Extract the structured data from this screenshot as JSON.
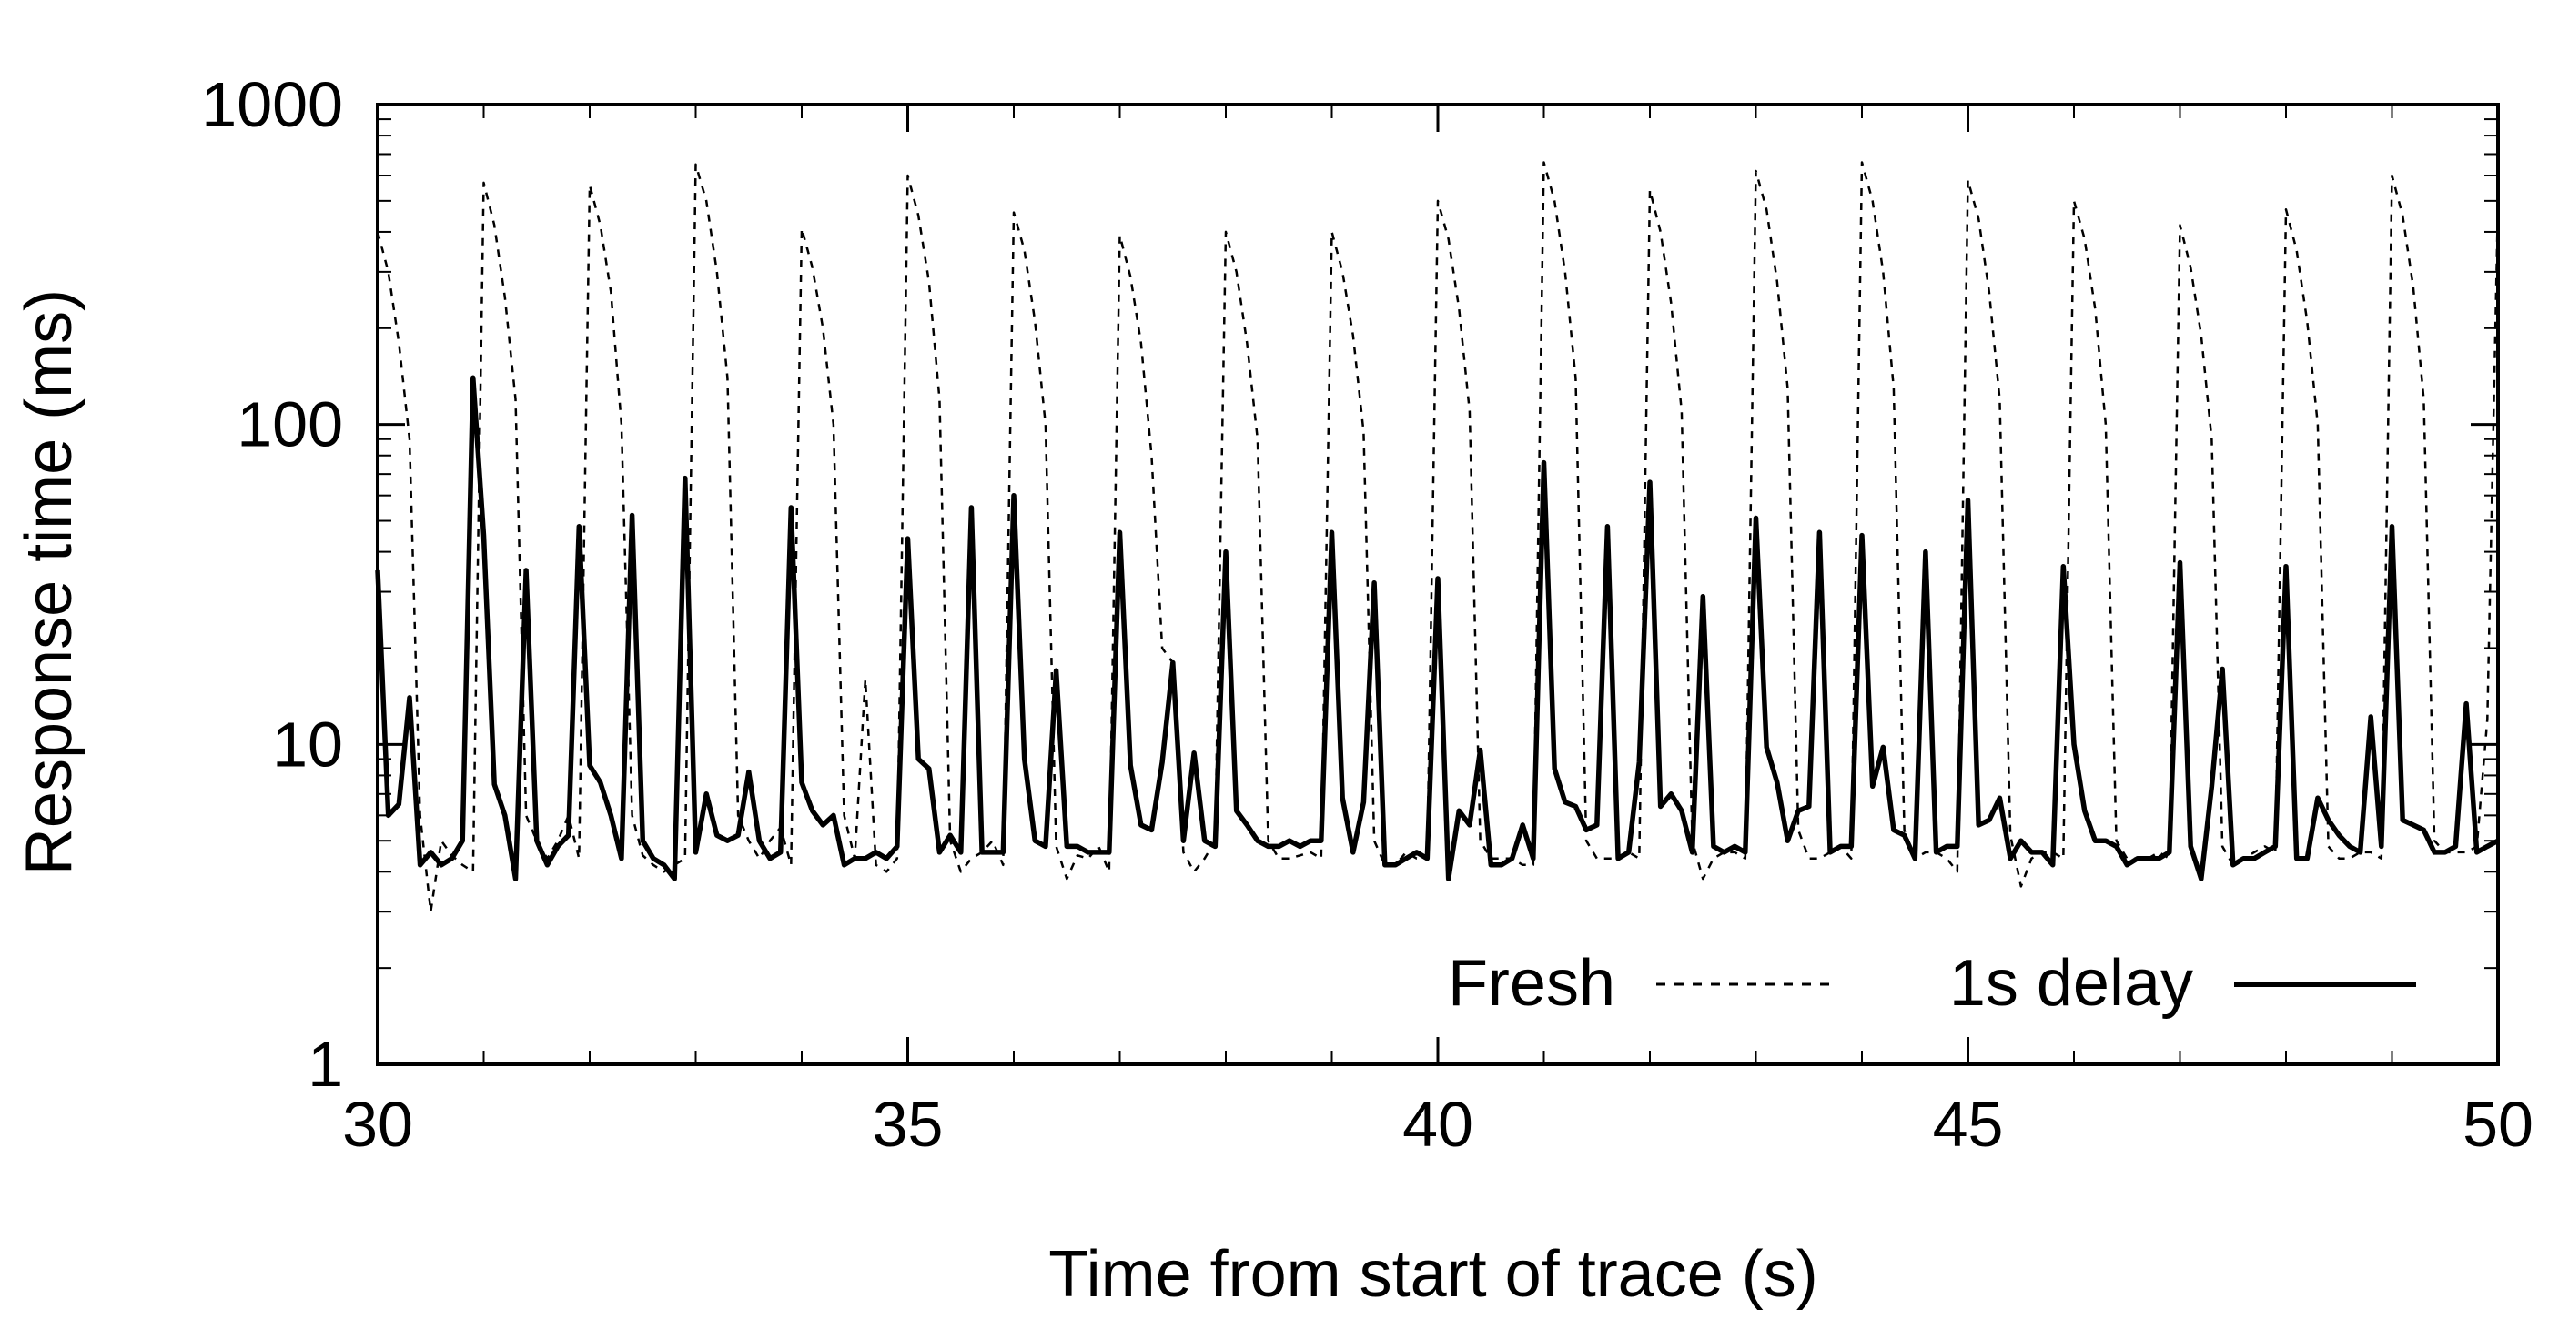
{
  "chart_data": {
    "type": "line",
    "xlabel": "Time from start of trace (s)",
    "ylabel": "Response time (ms)",
    "xlim": [
      30,
      50
    ],
    "ylim": [
      1,
      1000
    ],
    "yscale": "log",
    "grid": false,
    "legend_position": "bottom-right",
    "x_ticks": [
      "30",
      "35",
      "40",
      "45",
      "50"
    ],
    "y_ticks": [
      "1",
      "10",
      "100",
      "1000"
    ],
    "series": [
      {
        "name": "Fresh",
        "style": "dashed",
        "color": "#000000",
        "x": [
          30.0,
          30.1,
          30.2,
          30.3,
          30.4,
          30.5,
          30.6,
          30.7,
          30.8,
          30.9,
          31.0,
          31.1,
          31.2,
          31.3,
          31.4,
          31.5,
          31.6,
          31.7,
          31.8,
          31.9,
          32.0,
          32.1,
          32.2,
          32.3,
          32.4,
          32.5,
          32.6,
          32.7,
          32.8,
          32.9,
          33.0,
          33.1,
          33.2,
          33.3,
          33.4,
          33.5,
          33.6,
          33.7,
          33.8,
          33.9,
          34.0,
          34.1,
          34.2,
          34.3,
          34.4,
          34.5,
          34.6,
          34.7,
          34.8,
          34.9,
          35.0,
          35.1,
          35.2,
          35.3,
          35.4,
          35.5,
          35.6,
          35.7,
          35.8,
          35.9,
          36.0,
          36.1,
          36.2,
          36.3,
          36.4,
          36.5,
          36.6,
          36.7,
          36.8,
          36.9,
          37.0,
          37.1,
          37.2,
          37.3,
          37.4,
          37.5,
          37.6,
          37.7,
          37.8,
          37.9,
          38.0,
          38.1,
          38.2,
          38.3,
          38.4,
          38.5,
          38.6,
          38.7,
          38.8,
          38.9,
          39.0,
          39.1,
          39.2,
          39.3,
          39.4,
          39.5,
          39.6,
          39.7,
          39.8,
          39.9,
          40.0,
          40.1,
          40.2,
          40.3,
          40.4,
          40.5,
          40.6,
          40.7,
          40.8,
          40.9,
          41.0,
          41.1,
          41.2,
          41.3,
          41.4,
          41.5,
          41.6,
          41.7,
          41.8,
          41.9,
          42.0,
          42.1,
          42.2,
          42.3,
          42.4,
          42.5,
          42.6,
          42.7,
          42.8,
          42.9,
          43.0,
          43.1,
          43.2,
          43.3,
          43.4,
          43.5,
          43.6,
          43.7,
          43.8,
          43.9,
          44.0,
          44.1,
          44.2,
          44.3,
          44.4,
          44.5,
          44.6,
          44.7,
          44.8,
          44.9,
          45.0,
          45.1,
          45.2,
          45.3,
          45.4,
          45.5,
          45.6,
          45.7,
          45.8,
          45.9,
          46.0,
          46.1,
          46.2,
          46.3,
          46.4,
          46.5,
          46.6,
          46.7,
          46.8,
          46.9,
          47.0,
          47.1,
          47.2,
          47.3,
          47.4,
          47.5,
          47.6,
          47.7,
          47.8,
          47.9,
          48.0,
          48.1,
          48.2,
          48.3,
          48.4,
          48.5,
          48.6,
          48.7,
          48.8,
          48.9,
          49.0,
          49.1,
          49.2,
          49.3,
          49.4,
          49.5,
          49.6,
          49.7,
          49.8,
          49.9,
          50.0
        ],
        "y": [
          400,
          300,
          180,
          90,
          6,
          3,
          5,
          4.5,
          4.2,
          4,
          570,
          420,
          250,
          120,
          6,
          5,
          4.4,
          5,
          6,
          4.4,
          560,
          420,
          260,
          100,
          6,
          4.5,
          4.2,
          4,
          4.2,
          4.4,
          650,
          500,
          300,
          140,
          6,
          5,
          4.4,
          5,
          5.5,
          4.2,
          410,
          310,
          200,
          100,
          6,
          4.4,
          16,
          4.2,
          4,
          4.4,
          600,
          450,
          280,
          120,
          5,
          4,
          4.4,
          4.6,
          5,
          4.2,
          460,
          350,
          210,
          100,
          4.8,
          3.8,
          4.5,
          4.4,
          4.8,
          4,
          390,
          290,
          180,
          80,
          20,
          18,
          4.6,
          4,
          4.4,
          5,
          400,
          300,
          180,
          90,
          5,
          4.4,
          4.4,
          4.5,
          4.6,
          4.4,
          400,
          300,
          190,
          95,
          5,
          4.2,
          4.2,
          4.6,
          4.4,
          4.4,
          500,
          380,
          230,
          110,
          5,
          4.4,
          4.4,
          4.4,
          4.2,
          4.2,
          660,
          500,
          300,
          140,
          5,
          4.4,
          4.4,
          4.4,
          4.6,
          4.4,
          540,
          400,
          240,
          110,
          5,
          3.8,
          4.4,
          4.6,
          4.6,
          4.4,
          620,
          470,
          280,
          130,
          5.4,
          4.4,
          4.4,
          4.6,
          4.8,
          4.4,
          660,
          500,
          300,
          130,
          5.4,
          4.4,
          4.6,
          4.6,
          4.4,
          4,
          580,
          440,
          260,
          120,
          5.2,
          3.6,
          4.4,
          4.6,
          4.6,
          4.4,
          500,
          380,
          230,
          100,
          5,
          4.4,
          4.4,
          4.4,
          4.6,
          4.4,
          420,
          310,
          190,
          90,
          4.8,
          4.2,
          4.4,
          4.6,
          4.8,
          4.6,
          470,
          350,
          210,
          100,
          4.8,
          4.4,
          4.4,
          4.6,
          4.6,
          4.4,
          600,
          450,
          270,
          120,
          5,
          4.6,
          4.6,
          4.6,
          4.8,
          12,
          500
        ]
      },
      {
        "name": "1s delay",
        "style": "solid",
        "color": "#000000",
        "x": [
          30.0,
          30.1,
          30.2,
          30.3,
          30.4,
          30.5,
          30.6,
          30.7,
          30.8,
          30.9,
          31.0,
          31.1,
          31.2,
          31.3,
          31.4,
          31.5,
          31.6,
          31.7,
          31.8,
          31.9,
          32.0,
          32.1,
          32.2,
          32.3,
          32.4,
          32.5,
          32.6,
          32.7,
          32.8,
          32.9,
          33.0,
          33.1,
          33.2,
          33.3,
          33.4,
          33.5,
          33.6,
          33.7,
          33.8,
          33.9,
          34.0,
          34.1,
          34.2,
          34.3,
          34.4,
          34.5,
          34.6,
          34.7,
          34.8,
          34.9,
          35.0,
          35.1,
          35.2,
          35.3,
          35.4,
          35.5,
          35.6,
          35.7,
          35.8,
          35.9,
          36.0,
          36.1,
          36.2,
          36.3,
          36.4,
          36.5,
          36.6,
          36.7,
          36.8,
          36.9,
          37.0,
          37.1,
          37.2,
          37.3,
          37.4,
          37.5,
          37.6,
          37.7,
          37.8,
          37.9,
          38.0,
          38.1,
          38.2,
          38.3,
          38.4,
          38.5,
          38.6,
          38.7,
          38.8,
          38.9,
          39.0,
          39.1,
          39.2,
          39.3,
          39.4,
          39.5,
          39.6,
          39.7,
          39.8,
          39.9,
          40.0,
          40.1,
          40.2,
          40.3,
          40.4,
          40.5,
          40.6,
          40.7,
          40.8,
          40.9,
          41.0,
          41.1,
          41.2,
          41.3,
          41.4,
          41.5,
          41.6,
          41.7,
          41.8,
          41.9,
          42.0,
          42.1,
          42.2,
          42.3,
          42.4,
          42.5,
          42.6,
          42.7,
          42.8,
          42.9,
          43.0,
          43.1,
          43.2,
          43.3,
          43.4,
          43.5,
          43.6,
          43.7,
          43.8,
          43.9,
          44.0,
          44.1,
          44.2,
          44.3,
          44.4,
          44.5,
          44.6,
          44.7,
          44.8,
          44.9,
          45.0,
          45.1,
          45.2,
          45.3,
          45.4,
          45.5,
          45.6,
          45.7,
          45.8,
          45.9,
          46.0,
          46.1,
          46.2,
          46.3,
          46.4,
          46.5,
          46.6,
          46.7,
          46.8,
          46.9,
          47.0,
          47.1,
          47.2,
          47.3,
          47.4,
          47.5,
          47.6,
          47.7,
          47.8,
          47.9,
          48.0,
          48.1,
          48.2,
          48.3,
          48.4,
          48.5,
          48.6,
          48.7,
          48.8,
          48.9,
          49.0,
          49.1,
          49.2,
          49.3,
          49.4,
          49.5,
          49.6,
          49.7,
          49.8,
          49.9,
          50.0
        ],
        "y": [
          35,
          6,
          6.5,
          14,
          4.2,
          4.6,
          4.2,
          4.4,
          5,
          140,
          45,
          7.5,
          6,
          3.8,
          35,
          5,
          4.2,
          4.8,
          5.2,
          48,
          8.6,
          7.6,
          6,
          4.4,
          52,
          5,
          4.4,
          4.2,
          3.8,
          68,
          4.6,
          7,
          5.2,
          5,
          5.2,
          8.2,
          5,
          4.4,
          4.6,
          55,
          7.6,
          6.2,
          5.6,
          6,
          4.2,
          4.4,
          4.4,
          4.6,
          4.4,
          4.8,
          44,
          9,
          8.4,
          4.6,
          5.2,
          4.6,
          55,
          4.6,
          4.6,
          4.6,
          60,
          9,
          5,
          4.8,
          17,
          4.8,
          4.8,
          4.6,
          4.6,
          4.6,
          46,
          8.6,
          5.6,
          5.4,
          8.8,
          18,
          5,
          9.4,
          5,
          4.8,
          40,
          6.2,
          5.6,
          5,
          4.8,
          4.8,
          5,
          4.8,
          5,
          5,
          46,
          6.8,
          4.6,
          6.6,
          32,
          4.2,
          4.2,
          4.4,
          4.6,
          4.4,
          33,
          3.8,
          6.2,
          5.6,
          9.6,
          4.2,
          4.2,
          4.4,
          5.6,
          4.4,
          76,
          8.4,
          6.6,
          6.4,
          5.4,
          5.6,
          48,
          4.4,
          4.6,
          8.8,
          66,
          6.4,
          7,
          6.2,
          4.6,
          29,
          4.8,
          4.6,
          4.8,
          4.6,
          51,
          9.8,
          7.6,
          5,
          6.2,
          6.4,
          46,
          4.6,
          4.8,
          4.8,
          45,
          7.4,
          9.8,
          5.4,
          5.2,
          4.4,
          40,
          4.6,
          4.8,
          4.8,
          58,
          5.6,
          5.8,
          6.8,
          4.4,
          5,
          4.6,
          4.6,
          4.2,
          36,
          10,
          6.2,
          5,
          5,
          4.8,
          4.2,
          4.4,
          4.4,
          4.4,
          4.6,
          37,
          4.8,
          3.8,
          7.4,
          17.2,
          4.2,
          4.4,
          4.4,
          4.6,
          4.8,
          36,
          4.4,
          4.4,
          6.8,
          5.8,
          5.2,
          4.8,
          4.6,
          12.2,
          4.8,
          48,
          5.8,
          5.6,
          5.4,
          4.6,
          4.6,
          4.8,
          13.4,
          4.6,
          4.8,
          5
        ]
      }
    ]
  }
}
